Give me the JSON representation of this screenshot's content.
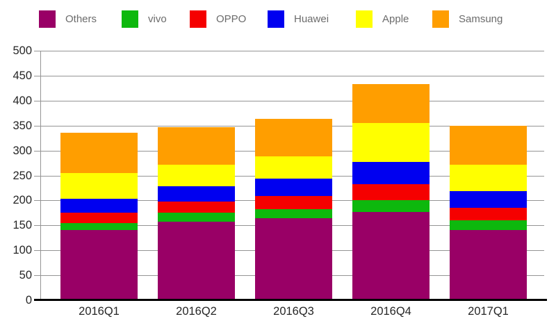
{
  "chart_data": {
    "type": "bar",
    "stacked": true,
    "title": "",
    "xlabel": "",
    "ylabel": "",
    "categories": [
      "2016Q1",
      "2016Q2",
      "2016Q3",
      "2016Q4",
      "2017Q1"
    ],
    "series": [
      {
        "name": "Others",
        "color": "#990066",
        "values": [
          140,
          157,
          164,
          177,
          141
        ]
      },
      {
        "name": "vivo",
        "color": "#0DB80D",
        "values": [
          14,
          19,
          19,
          24,
          19
        ]
      },
      {
        "name": "OPPO",
        "color": "#F50000",
        "values": [
          21,
          22,
          26,
          32,
          25
        ]
      },
      {
        "name": "Huawei",
        "color": "#0000F0",
        "values": [
          28,
          31,
          35,
          44,
          33
        ]
      },
      {
        "name": "Apple",
        "color": "#FFFF00",
        "values": [
          52,
          42,
          44,
          78,
          54
        ]
      },
      {
        "name": "Samsung",
        "color": "#FF9E00",
        "values": [
          80,
          76,
          76,
          78,
          77
        ]
      }
    ],
    "totals": [
      335,
      347,
      364,
      433,
      349
    ],
    "y_axis": {
      "min": 0,
      "max": 500,
      "step": 50,
      "tick_labels": [
        "0",
        "50",
        "100",
        "150",
        "200",
        "250",
        "300",
        "350",
        "400",
        "450",
        "500"
      ]
    },
    "legend": {
      "position": "top",
      "entries": [
        "Others",
        "vivo",
        "OPPO",
        "Huawei",
        "Apple",
        "Samsung"
      ]
    },
    "grid": true
  },
  "style_colors": {
    "gridline": "#949494",
    "x_axis_line": "#000000",
    "axis_text": "#262626",
    "legend_text": "#6b6b6b",
    "background": "#ffffff"
  }
}
